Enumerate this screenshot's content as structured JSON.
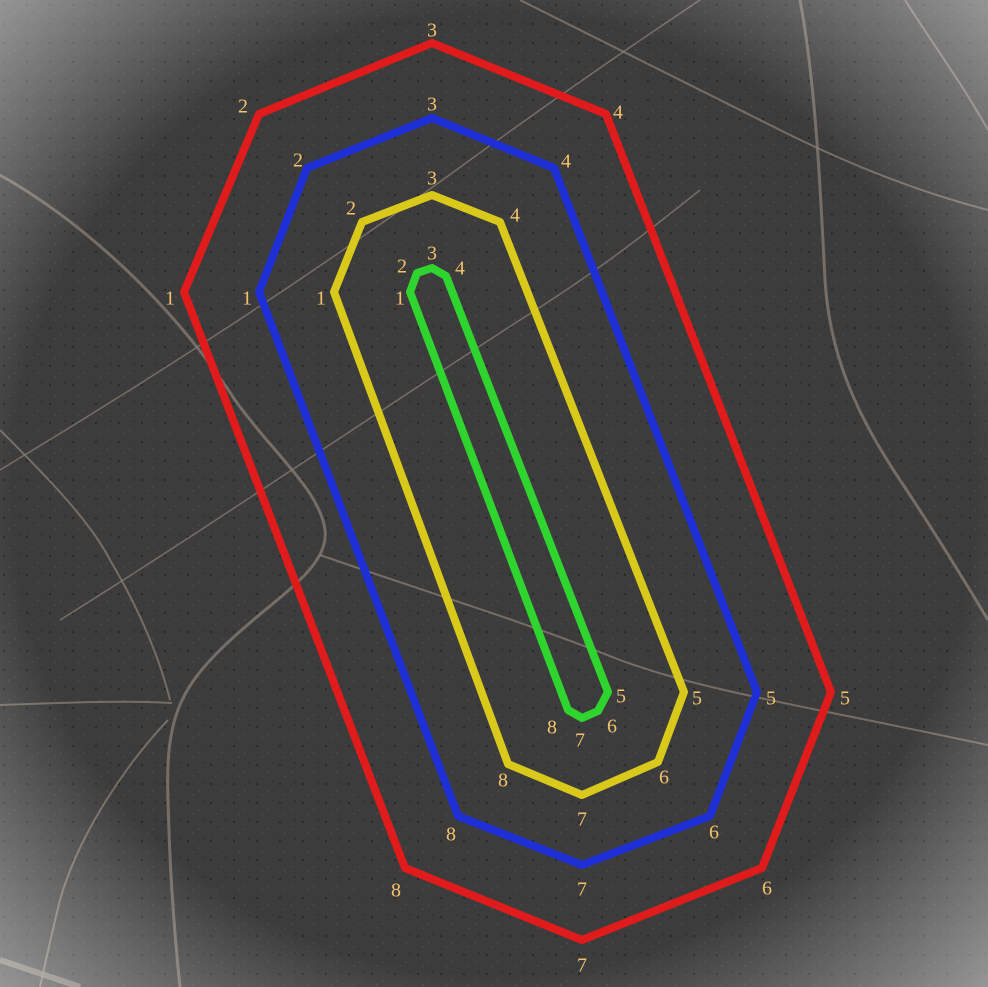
{
  "map": {
    "background_color": "#3d3c3c",
    "track_color": "#8a7f74",
    "label_color": "#f2c36c"
  },
  "polygons": [
    {
      "id": "red-boundary",
      "color": "#e01b1b",
      "vertices": [
        {
          "label": "1"
        },
        {
          "label": "2"
        },
        {
          "label": "3"
        },
        {
          "label": "4"
        },
        {
          "label": "5"
        },
        {
          "label": "6"
        },
        {
          "label": "7"
        },
        {
          "label": "8"
        }
      ]
    },
    {
      "id": "blue-boundary",
      "color": "#1f2fd6",
      "vertices": [
        {
          "label": "1"
        },
        {
          "label": "2"
        },
        {
          "label": "3"
        },
        {
          "label": "4"
        },
        {
          "label": "5"
        },
        {
          "label": "6"
        },
        {
          "label": "7"
        },
        {
          "label": "8"
        }
      ]
    },
    {
      "id": "yellow-boundary",
      "color": "#d8c91a",
      "vertices": [
        {
          "label": "1"
        },
        {
          "label": "2"
        },
        {
          "label": "3"
        },
        {
          "label": "4"
        },
        {
          "label": "5"
        },
        {
          "label": "6"
        },
        {
          "label": "7"
        },
        {
          "label": "8"
        }
      ]
    },
    {
      "id": "green-boundary",
      "color": "#2fd42f",
      "vertices": [
        {
          "label": "1"
        },
        {
          "label": "2"
        },
        {
          "label": "3"
        },
        {
          "label": "4"
        },
        {
          "label": "5"
        },
        {
          "label": "6"
        },
        {
          "label": "7"
        },
        {
          "label": "8"
        }
      ]
    }
  ]
}
